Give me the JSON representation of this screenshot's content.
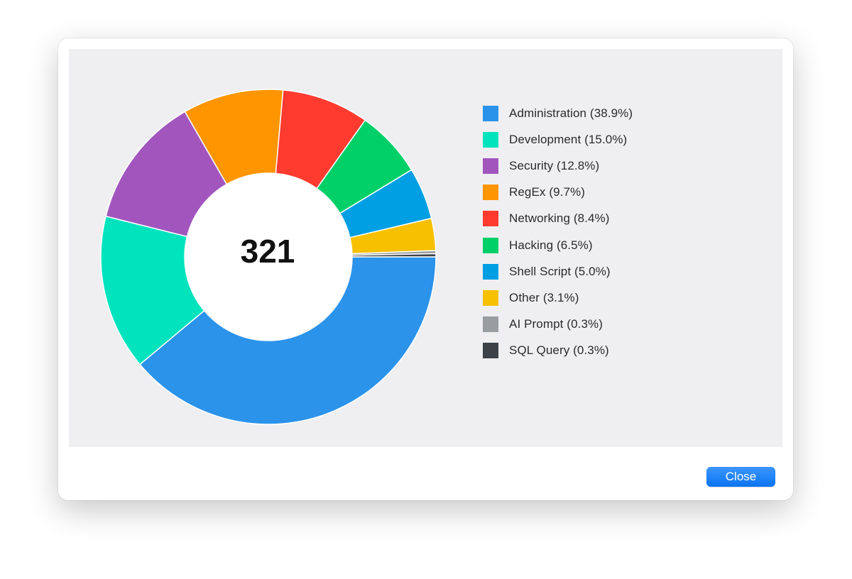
{
  "chart_data": {
    "type": "pie",
    "variant": "donut",
    "center_label": "321",
    "categories": [
      "Administration",
      "Development",
      "Security",
      "RegEx",
      "Networking",
      "Hacking",
      "Shell Script",
      "Other",
      "AI Prompt",
      "SQL Query"
    ],
    "values": [
      38.9,
      15.0,
      12.8,
      9.7,
      8.4,
      6.5,
      5.0,
      3.1,
      0.3,
      0.3
    ],
    "colors": [
      "#2b93ea",
      "#00e3bd",
      "#a256bd",
      "#ff9500",
      "#ff3b30",
      "#00d067",
      "#009fe3",
      "#f7c000",
      "#9a9da0",
      "#3c4247"
    ],
    "legend_labels": [
      "Administration (38.9%)",
      "Development (15.0%)",
      "Security (12.8%)",
      "RegEx (9.7%)",
      "Networking (8.4%)",
      "Hacking (6.5%)",
      "Shell Script (5.0%)",
      "Other (3.1%)",
      "AI Prompt (0.3%)",
      "SQL Query (0.3%)"
    ],
    "legend_position": "right",
    "start_angle": "3 o'clock",
    "direction": "clockwise",
    "title": "",
    "xlabel": "",
    "ylabel": ""
  },
  "footer": {
    "close_label": "Close"
  }
}
